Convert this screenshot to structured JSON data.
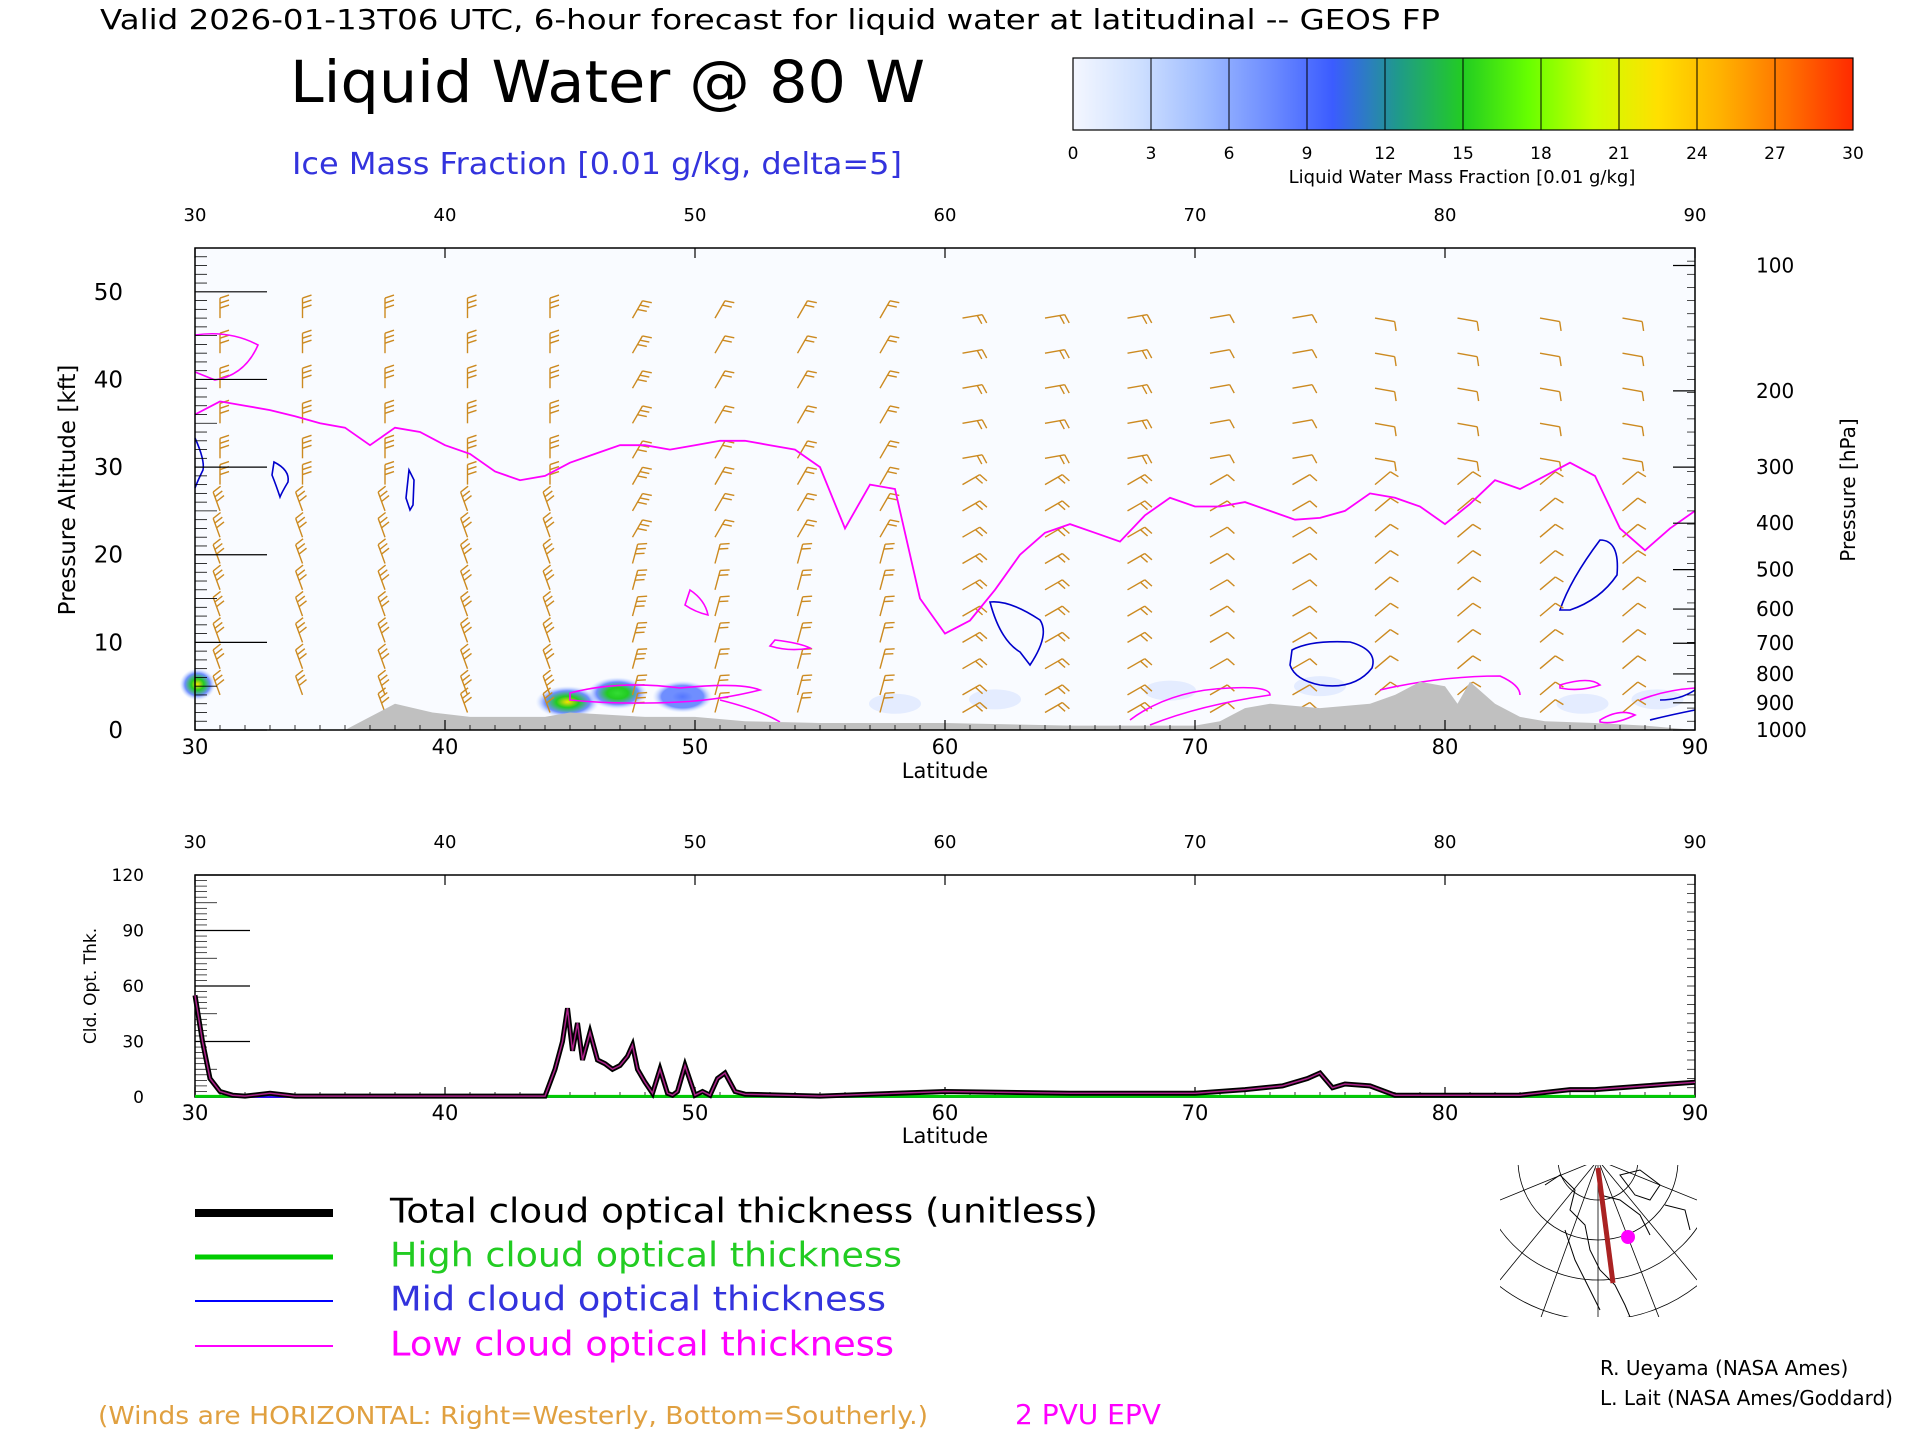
{
  "header": {
    "valid_line": "Valid 2026-01-13T06 UTC, 6-hour forecast for liquid water at latitudinal -- GEOS FP",
    "title": "Liquid Water @ 80 W",
    "subtitle": "Ice Mass Fraction [0.01 g/kg, delta=5]"
  },
  "colorbar": {
    "label": "Liquid Water Mass Fraction [0.01 g/kg]",
    "ticks": [
      "0",
      "3",
      "6",
      "9",
      "12",
      "15",
      "18",
      "21",
      "24",
      "27",
      "30"
    ],
    "colors": [
      "#f4f7ff",
      "#cfe0ff",
      "#9fbcff",
      "#6f8eff",
      "#3b5cff",
      "#1f9a8a",
      "#22cc22",
      "#66ff00",
      "#ccff00",
      "#ffe000",
      "#ffb000",
      "#ff7000",
      "#ff2a00"
    ]
  },
  "chart_data": [
    {
      "type": "contour",
      "xlabel": "Latitude",
      "ylabel": "Pressure Altitude [kft]",
      "y2label": "Pressure [hPa]",
      "xlim": [
        30,
        90
      ],
      "ylim": [
        0,
        55
      ],
      "xticks": [
        "30",
        "40",
        "50",
        "60",
        "70",
        "80",
        "90"
      ],
      "yticks": [
        "0",
        "10",
        "20",
        "30",
        "40",
        "50"
      ],
      "pressure_ticks": [
        {
          "label": "100",
          "kft": 53.0
        },
        {
          "label": "200",
          "kft": 38.7
        },
        {
          "label": "300",
          "kft": 30.0
        },
        {
          "label": "400",
          "kft": 23.6
        },
        {
          "label": "500",
          "kft": 18.3
        },
        {
          "label": "600",
          "kft": 13.8
        },
        {
          "label": "700",
          "kft": 9.9
        },
        {
          "label": "800",
          "kft": 6.4
        },
        {
          "label": "900",
          "kft": 3.1
        },
        {
          "label": "1000",
          "kft": 0.0
        }
      ],
      "epv_2pvu_line": {
        "color": "#ff00ff",
        "lat": [
          30,
          31,
          32,
          33,
          34,
          35,
          36,
          37,
          38,
          39,
          40,
          41,
          42,
          43,
          44,
          45,
          46,
          47,
          48,
          49,
          50,
          51,
          52,
          53,
          54,
          55,
          56,
          57,
          58,
          59,
          60,
          61,
          62,
          63,
          64,
          65,
          66,
          67,
          68,
          69,
          70,
          71,
          72,
          73,
          74,
          75,
          76,
          77,
          78,
          79,
          80,
          81,
          82,
          83,
          84,
          85,
          86,
          87,
          88,
          89,
          90
        ],
        "kft": [
          36,
          37.5,
          37,
          36.5,
          35.8,
          35,
          34.5,
          32.5,
          34.5,
          34,
          32.5,
          31.5,
          29.5,
          28.5,
          29,
          30.5,
          31.5,
          32.5,
          32.5,
          32,
          32.5,
          33,
          33,
          32.5,
          32,
          30,
          23,
          28,
          27.5,
          15,
          11,
          12.5,
          16,
          20,
          22.5,
          23.5,
          22.5,
          21.5,
          24.5,
          26.5,
          25.5,
          25.5,
          26,
          25,
          24,
          24.2,
          25,
          27,
          26.5,
          25.5,
          23.5,
          25.8,
          28.5,
          27.5,
          29,
          30.5,
          29,
          23,
          20.5,
          23,
          25
        ]
      },
      "terrain": {
        "color": "#c0c0c0",
        "lat": [
          30,
          36,
          37,
          38,
          39.5,
          41,
          44,
          45,
          48,
          50,
          52,
          55,
          60,
          65,
          70,
          71,
          72,
          73,
          75,
          77,
          78,
          79,
          80,
          80.5,
          81,
          82,
          83,
          84,
          86,
          88,
          90
        ],
        "kft": [
          0,
          0,
          1.5,
          3,
          2,
          1.5,
          1.5,
          2,
          1.5,
          1.5,
          1,
          0.8,
          0.8,
          0.5,
          0.5,
          1,
          2.5,
          3,
          2.5,
          3,
          4,
          5.5,
          5,
          3,
          5.5,
          3,
          1.5,
          1,
          0.8,
          0.5,
          0
        ]
      },
      "liquid_water_patches": [
        {
          "lat": 30.1,
          "kft": 5.2,
          "peak": 30
        },
        {
          "lat": 44.9,
          "kft": 3.2,
          "peak": 27
        },
        {
          "lat": 46.9,
          "kft": 4.2,
          "peak": 15
        },
        {
          "lat": 49.5,
          "kft": 3.8,
          "peak": 9
        }
      ],
      "ice_contours_count": 8
    },
    {
      "type": "line",
      "xlabel": "Latitude",
      "ylabel": "Cld. Opt. Thk.",
      "xlim": [
        30,
        90
      ],
      "ylim": [
        0,
        120
      ],
      "xticks": [
        "30",
        "40",
        "50",
        "60",
        "70",
        "80",
        "90"
      ],
      "yticks": [
        "0",
        "30",
        "60",
        "90",
        "120"
      ],
      "series": [
        {
          "name": "Total cloud optical thickness (unitless)",
          "color": "#000000",
          "x": [
            30,
            30.3,
            30.6,
            31,
            31.5,
            32,
            33,
            34,
            40,
            44,
            44.4,
            44.7,
            44.9,
            45.1,
            45.3,
            45.5,
            45.8,
            46.1,
            46.4,
            46.7,
            47,
            47.3,
            47.5,
            47.7,
            48,
            48.3,
            48.6,
            48.9,
            49.1,
            49.3,
            49.6,
            50,
            50.3,
            50.6,
            50.9,
            51.2,
            51.6,
            52,
            55,
            60,
            65,
            70,
            72,
            73.5,
            74.5,
            75,
            75.5,
            76,
            77,
            78,
            80,
            83,
            85,
            86,
            87,
            88,
            89,
            90
          ],
          "y": [
            55,
            30,
            10,
            3,
            1,
            0.5,
            2,
            0.5,
            0.5,
            0.5,
            15,
            30,
            48,
            25,
            40,
            20,
            35,
            20,
            18,
            15,
            17,
            22,
            28,
            15,
            8,
            2,
            15,
            2,
            1,
            3,
            17,
            1,
            3,
            1,
            10,
            13,
            3,
            1.5,
            0.5,
            3,
            2,
            2,
            4,
            6,
            10,
            13,
            5,
            7,
            6,
            1,
            1,
            1,
            4,
            4,
            5,
            6,
            7,
            8
          ]
        },
        {
          "name": "High cloud optical thickness",
          "color": "#00cc00",
          "x": [
            30,
            32,
            33,
            34,
            60,
            90
          ],
          "y": [
            0.3,
            0.3,
            1.5,
            0.3,
            0.3,
            0.3
          ]
        },
        {
          "name": "Mid cloud optical thickness",
          "color": "#0000ff",
          "x": [
            30,
            90
          ],
          "y": [
            0,
            0
          ]
        },
        {
          "name": "Low cloud optical thickness",
          "color": "#ff00ff",
          "x": [
            30,
            90
          ],
          "y": [
            0,
            0
          ]
        }
      ]
    }
  ],
  "legend": [
    {
      "label": "Total cloud optical thickness (unitless)",
      "color": "#000000"
    },
    {
      "label": "High cloud optical thickness",
      "color": "#00cc00"
    },
    {
      "label": "Mid cloud optical thickness",
      "color": "#3333dd"
    },
    {
      "label": "Low cloud optical thickness",
      "color": "#ff00ff"
    }
  ],
  "footer": {
    "winds_note": "(Winds are HORIZONTAL: Right=Westerly, Bottom=Southerly.)",
    "epv_label": "2 PVU EPV",
    "credit1": "R. Ueyama (NASA Ames)",
    "credit2": "L. Lait (NASA Ames/Goddard)"
  },
  "colors": {
    "wind_barbs": "#cc8a20",
    "epv": "#ff00ff",
    "ice": "#0000cc",
    "terrain": "#c0c0c0"
  }
}
